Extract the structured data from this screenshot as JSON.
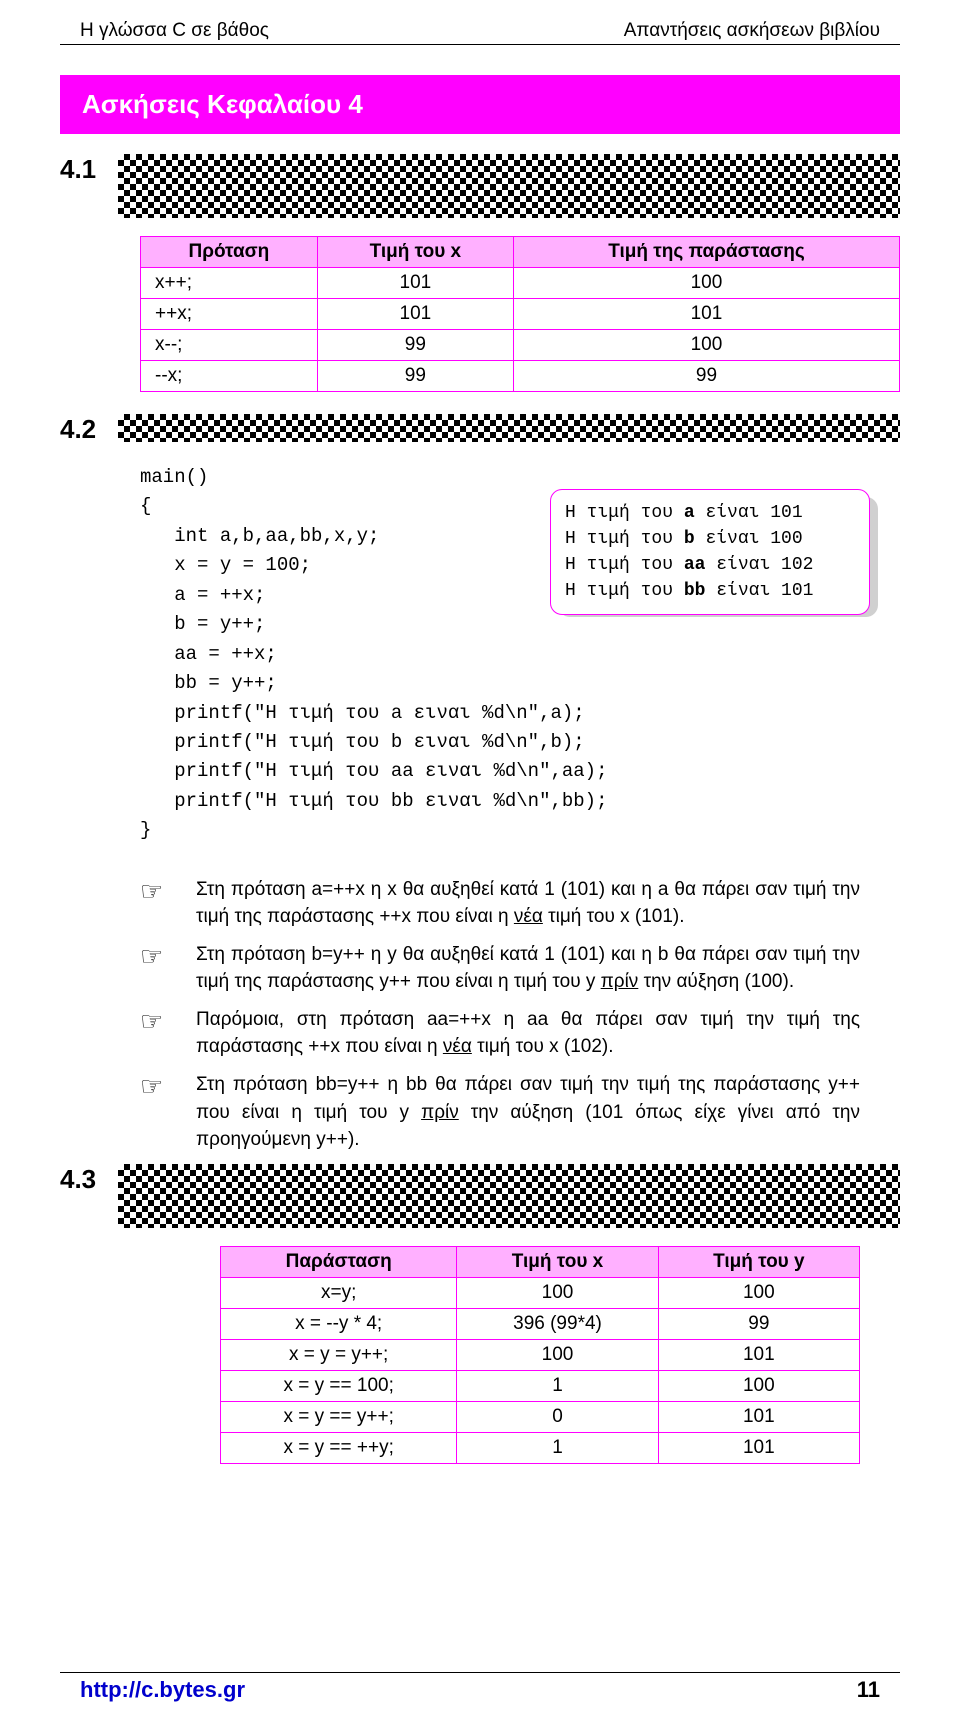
{
  "header": {
    "left": "Η γλώσσα C σε βάθος",
    "right": "Απαντήσεις ασκήσεων βιβλίου"
  },
  "chapter_title": "Ασκήσεις Κεφαλαίου 4",
  "sections": {
    "s41": "4.1",
    "s42": "4.2",
    "s43": "4.3"
  },
  "table1": {
    "headers": [
      "Πρόταση",
      "Τιμή του x",
      "Τιμή της παράστασης"
    ],
    "rows": [
      [
        "x++;",
        "101",
        "100"
      ],
      [
        "++x;",
        "101",
        "101"
      ],
      [
        "x--;",
        "99",
        "100"
      ],
      [
        "--x;",
        "99",
        "99"
      ]
    ]
  },
  "code_lines": {
    "l0": "main()",
    "l1": "{",
    "l2": "   int a,b,aa,bb,x,y;",
    "l3": "   x = y = 100;",
    "l4": "   a = ++x;",
    "l5": "   b = y++;",
    "l6": "   aa = ++x;",
    "l7": "   bb = y++;",
    "l8": "   printf(\"Η τιμή του a ειναι %d\\n\",a);",
    "l9": "   printf(\"Η τιμή του b ειναι %d\\n\",b);",
    "l10": "   printf(\"Η τιμή του aa ειναι %d\\n\",aa);",
    "l11": "   printf(\"Η τιμή του bb ειναι %d\\n\",bb);",
    "l12": "}"
  },
  "callout": {
    "l1a": "Η τιμή του ",
    "l1b": "a",
    "l1c": " είναι 101",
    "l2a": "Η τιμή του ",
    "l2b": "b",
    "l2c": " είναι 100",
    "l3a": "Η τιμή του ",
    "l3b": "aa",
    "l3c": " είναι 102",
    "l4a": "Η τιμή του ",
    "l4b": "bb",
    "l4c": " είναι 101"
  },
  "notes": {
    "n1": "Στη πρόταση a=++x η x θα αυξηθεί κατά 1 (101) και η a θα πάρει σαν τιμή την τιμή της παράστασης ++x που είναι η ",
    "n1u": "νέα",
    "n1b": " τιμή του x (101).",
    "n2": "Στη πρόταση b=y++ η y θα αυξηθεί κατά 1 (101) και η b θα πάρει σαν τιμή την τιμή της παράστασης y++ που είναι η  τιμή του y ",
    "n2u": "πρίν",
    "n2b": " την αύξηση (100).",
    "n3": "Παρόμοια, στη πρόταση aa=++x η aa θα πάρει σαν τιμή την τιμή της παράστασης ++x που είναι η ",
    "n3u": "νέα",
    "n3b": " τιμή του x (102).",
    "n4": "Στη πρόταση bb=y++ η bb θα πάρει σαν τιμή την τιμή της παράστασης y++ που είναι η  τιμή του y ",
    "n4u": "πρίν",
    "n4b": " την αύξηση (101 όπως είχε γίνει από την προηγούμενη y++)."
  },
  "table2": {
    "headers": [
      "Παράσταση",
      "Τιμή του x",
      "Τιμή του y"
    ],
    "rows": [
      [
        "x=y;",
        "100",
        "100"
      ],
      [
        "x = --y * 4;",
        "396 (99*4)",
        "99"
      ],
      [
        "x = y = y++;",
        "100",
        "101"
      ],
      [
        "x = y == 100;",
        "1",
        "100"
      ],
      [
        "x = y == y++;",
        "0",
        "101"
      ],
      [
        "x = y == ++y;",
        "1",
        "101"
      ]
    ]
  },
  "footer": {
    "link": "http://c.bytes.gr",
    "page": "11"
  },
  "hand_icon": "☞"
}
